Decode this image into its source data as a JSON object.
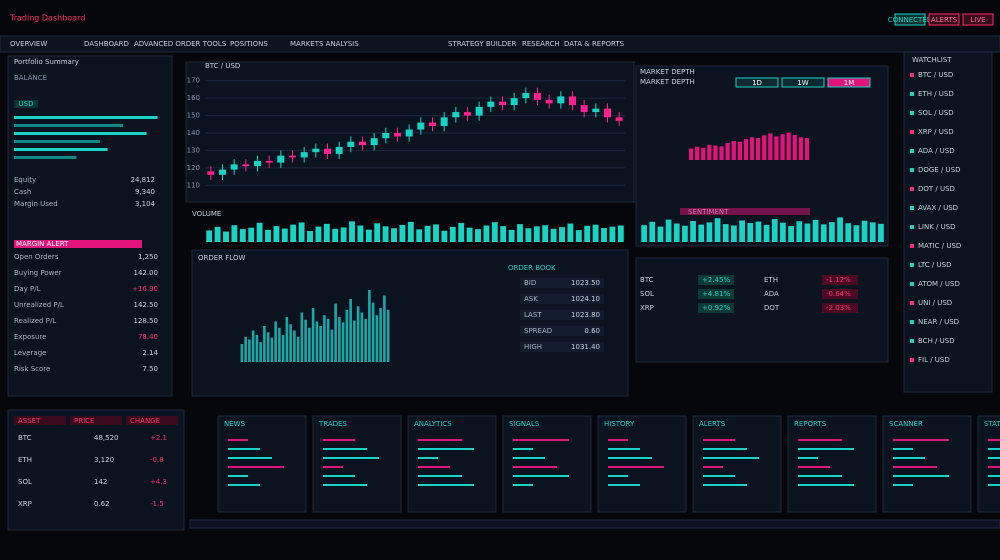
{
  "header": {
    "title": "Trading Dashboard",
    "buttons": [
      "CONNECTED",
      "ALERTS",
      "LIVE"
    ]
  },
  "nav": [
    "OVERVIEW",
    "DASHBOARD",
    "ADVANCED ORDER TOOLS",
    "POSITIONS",
    "MARKETS ANALYSIS",
    "STRATEGY BUILDER",
    "RESEARCH",
    "DATA & REPORTS"
  ],
  "left_panel": {
    "title": "Portfolio Summary",
    "subtitle": "BALANCE",
    "badge": "USD",
    "bars": [
      92,
      70,
      85,
      55,
      60,
      40
    ],
    "bars_lim": [
      0,
      100
    ],
    "rows": [
      [
        "Equity",
        "24,812"
      ],
      [
        "Cash",
        "9,340"
      ],
      [
        "Margin Used",
        "3,104"
      ]
    ],
    "alert": "MARGIN ALERT",
    "list": [
      [
        "Open Orders",
        "1,250"
      ],
      [
        "Buying Power",
        "142.00"
      ],
      [
        "Day P/L",
        "+16.90"
      ],
      [
        "Unrealized P/L",
        "142.50"
      ],
      [
        "Realized P/L",
        "128.50"
      ],
      [
        "Exposure",
        "78.40"
      ],
      [
        "Leverage",
        "2.14"
      ],
      [
        "Risk Score",
        "7.50"
      ]
    ]
  },
  "chart_data": [
    {
      "type": "candlestick",
      "title": "BTC / USD",
      "ylim": [
        105,
        175
      ],
      "yticks": [
        110,
        120,
        130,
        140,
        150,
        160,
        170
      ],
      "grid": true,
      "up_color": "#19d3c5",
      "down_color": "#ff1f8e",
      "open": [
        118,
        116,
        119,
        122,
        121,
        124,
        123,
        127,
        126,
        129,
        131,
        128,
        132,
        135,
        133,
        137,
        140,
        138,
        142,
        146,
        144,
        149,
        152,
        150,
        155,
        158,
        156,
        160,
        163,
        159,
        157,
        161,
        156,
        152,
        154,
        149
      ],
      "high": [
        121,
        122,
        125,
        125,
        127,
        127,
        130,
        130,
        132,
        134,
        134,
        135,
        138,
        138,
        140,
        143,
        143,
        145,
        149,
        149,
        152,
        155,
        155,
        158,
        161,
        161,
        163,
        166,
        166,
        162,
        164,
        164,
        159,
        157,
        157,
        152
      ],
      "low": [
        113,
        113,
        116,
        118,
        118,
        120,
        120,
        123,
        123,
        126,
        125,
        125,
        129,
        130,
        130,
        134,
        135,
        135,
        139,
        141,
        141,
        146,
        147,
        147,
        152,
        153,
        153,
        157,
        156,
        154,
        154,
        153,
        149,
        149,
        146,
        144
      ],
      "close": [
        116,
        119,
        122,
        121,
        124,
        123,
        127,
        126,
        129,
        131,
        128,
        132,
        135,
        133,
        137,
        140,
        138,
        142,
        146,
        144,
        149,
        152,
        150,
        155,
        158,
        156,
        160,
        163,
        159,
        157,
        161,
        156,
        152,
        154,
        149,
        147
      ]
    },
    {
      "type": "bar",
      "title": "VOLUME",
      "color": "#19d3c5",
      "ylim": [
        0,
        80
      ],
      "values": [
        42,
        55,
        38,
        61,
        47,
        52,
        70,
        44,
        58,
        49,
        63,
        71,
        40,
        56,
        66,
        48,
        53,
        75,
        60,
        45,
        68,
        57,
        50,
        62,
        73,
        46,
        59,
        64,
        41,
        55,
        69,
        52,
        47,
        60,
        72,
        58,
        44,
        65,
        50,
        57,
        61,
        48,
        54,
        67,
        43,
        59,
        63,
        51,
        56,
        60
      ]
    },
    {
      "type": "bar",
      "title": "ORDER FLOW",
      "color": "#1aa7a6",
      "ylim": [
        0,
        100
      ],
      "values": [
        20,
        28,
        25,
        35,
        30,
        22,
        40,
        33,
        27,
        45,
        38,
        30,
        50,
        42,
        35,
        28,
        55,
        47,
        38,
        60,
        45,
        40,
        52,
        48,
        36,
        65,
        50,
        44,
        58,
        70,
        46,
        62,
        55,
        48,
        80,
        66,
        52,
        60,
        74,
        58
      ]
    },
    {
      "type": "bar",
      "title": "MARKET DEPTH",
      "color": "#19d3c5",
      "ylim": [
        0,
        100
      ],
      "values": [
        60,
        72,
        55,
        80,
        66,
        58,
        75,
        62,
        70,
        85,
        64,
        59,
        77,
        68,
        73,
        61,
        82,
        69,
        57,
        74,
        66,
        79,
        63,
        71,
        88,
        67,
        60,
        76,
        70,
        65
      ]
    },
    {
      "type": "bar",
      "title": "SENTIMENT",
      "color": "#e0147a",
      "ylim": [
        0,
        100
      ],
      "values": [
        30,
        35,
        32,
        40,
        38,
        36,
        45,
        50,
        48,
        55,
        60,
        58,
        65,
        70,
        62,
        68,
        72,
        66,
        60,
        58
      ]
    }
  ],
  "order_book": {
    "title": "ORDER BOOK",
    "rows": [
      [
        "BID",
        "1023.50"
      ],
      [
        "ASK",
        "1024.10"
      ],
      [
        "LAST",
        "1023.80"
      ],
      [
        "SPREAD",
        "0.60"
      ],
      [
        "HIGH",
        "1031.40"
      ]
    ]
  },
  "right_panel": {
    "title": "MARKET DEPTH",
    "tabs": [
      "1D",
      "1W",
      "1M"
    ],
    "rows": [
      [
        "BTC",
        "+2.45%",
        "ETH",
        "-1.12%"
      ],
      [
        "SOL",
        "+4.81%",
        "ADA",
        "-0.64%"
      ],
      [
        "XRP",
        "+0.92%",
        "DOT",
        "-2.03%"
      ]
    ]
  },
  "watchlist": {
    "title": "WATCHLIST",
    "items": [
      "BTC / USD",
      "ETH / USD",
      "SOL / USD",
      "XRP / USD",
      "ADA / USD",
      "DOGE / USD",
      "DOT / USD",
      "AVAX / USD",
      "LINK / USD",
      "MATIC / USD",
      "LTC / USD",
      "ATOM / USD",
      "UNI / USD",
      "NEAR / USD",
      "BCH / USD",
      "FIL / USD"
    ]
  },
  "bottom_table": {
    "headers": [
      "ASSET",
      "PRICE",
      "CHANGE"
    ],
    "rows": [
      [
        "BTC",
        "48,520",
        "+2.1"
      ],
      [
        "ETH",
        "3,120",
        "-0.8"
      ],
      [
        "SOL",
        "142",
        "+4.3"
      ],
      [
        "XRP",
        "0.62",
        "-1.5"
      ]
    ]
  },
  "thumbnails": [
    "NEWS",
    "TRADES",
    "ANALYTICS",
    "SIGNALS",
    "HISTORY",
    "ALERTS",
    "REPORTS",
    "SCANNER",
    "STATS"
  ]
}
